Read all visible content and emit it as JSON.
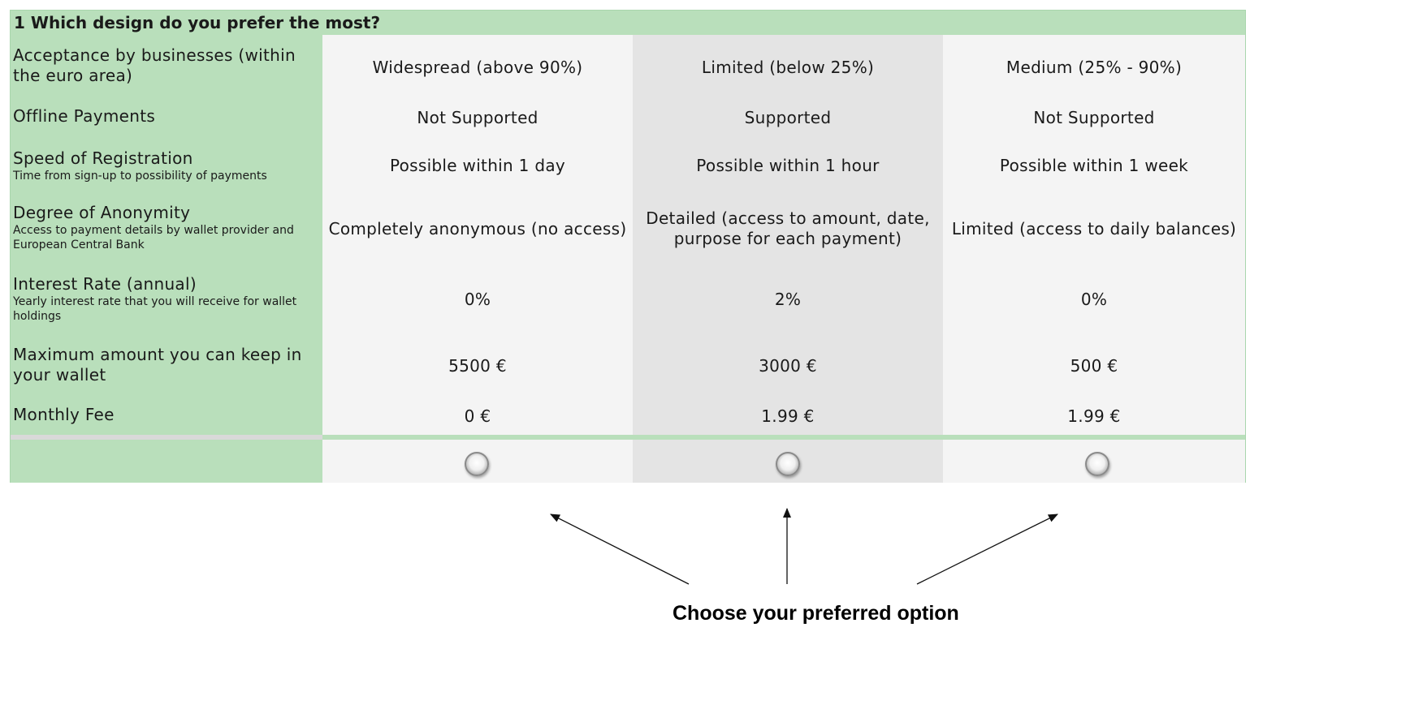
{
  "question": {
    "number": "1",
    "text": "Which design do you prefer the most?"
  },
  "attributes": [
    {
      "name": "Acceptance by businesses (within the euro area)",
      "description": ""
    },
    {
      "name": "Offline Payments",
      "description": ""
    },
    {
      "name": "Speed of Registration",
      "description": "Time from sign-up to possibility of payments"
    },
    {
      "name": "Degree of Anonymity",
      "description": "Access to payment details by wallet provider and European Central Bank"
    },
    {
      "name": "Interest Rate (annual)",
      "description": "Yearly interest rate that you will receive for wallet holdings"
    },
    {
      "name": "Maximum amount you can keep in your wallet",
      "description": ""
    },
    {
      "name": "Monthly Fee",
      "description": ""
    }
  ],
  "options": [
    {
      "values": [
        "Widespread (above 90%)",
        "Not Supported",
        "Possible within 1 day",
        "Completely anonymous (no access)",
        "0%",
        "5500 €",
        "0 €"
      ],
      "selected": false
    },
    {
      "values": [
        "Limited (below 25%)",
        "Supported",
        "Possible within 1 hour",
        "Detailed (access to amount, date, purpose for each payment)",
        "2%",
        "3000 €",
        "1.99 €"
      ],
      "selected": false
    },
    {
      "values": [
        "Medium (25% - 90%)",
        "Not Supported",
        "Possible within 1 week",
        "Limited (access to daily balances)",
        "0%",
        "500 €",
        "1.99 €"
      ],
      "selected": false
    }
  ],
  "instruction": "Choose your preferred option",
  "colors": {
    "header_green": "#b9dfbb",
    "cell_light": "#f4f4f4",
    "cell_highlight": "#e4e4e4"
  }
}
